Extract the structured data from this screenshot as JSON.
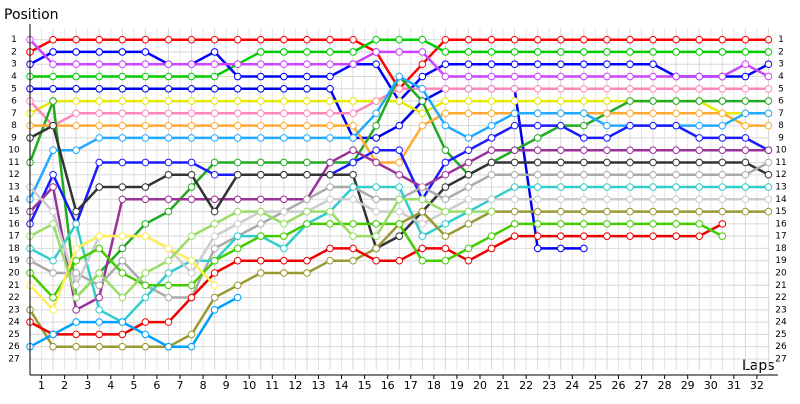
{
  "chart_data": {
    "type": "line",
    "y_label": "Position",
    "x_label": "Laps",
    "x": [
      0,
      1,
      2,
      3,
      4,
      5,
      6,
      7,
      8,
      9,
      10,
      11,
      12,
      13,
      14,
      15,
      16,
      17,
      18,
      19,
      20,
      21,
      22,
      23,
      24,
      25,
      26,
      27,
      28,
      29,
      30,
      31,
      32
    ],
    "xlim": [
      0,
      32.5
    ],
    "xticks": [
      {
        "value": 0.5,
        "label": "1"
      },
      {
        "value": 1.5,
        "label": "2"
      },
      {
        "value": 2.5,
        "label": "3"
      },
      {
        "value": 3.5,
        "label": "4"
      },
      {
        "value": 4.5,
        "label": "5"
      },
      {
        "value": 5.5,
        "label": "6"
      },
      {
        "value": 6.5,
        "label": "7"
      },
      {
        "value": 7.5,
        "label": "8"
      },
      {
        "value": 8.5,
        "label": "9"
      },
      {
        "value": 9.5,
        "label": "10"
      },
      {
        "value": 10.5,
        "label": "11"
      },
      {
        "value": 11.5,
        "label": "12"
      },
      {
        "value": 12.5,
        "label": "13"
      },
      {
        "value": 13.5,
        "label": "14"
      },
      {
        "value": 14.5,
        "label": "15"
      },
      {
        "value": 15.5,
        "label": "16"
      },
      {
        "value": 16.5,
        "label": "17"
      },
      {
        "value": 17.5,
        "label": "18"
      },
      {
        "value": 18.5,
        "label": "19"
      },
      {
        "value": 19.5,
        "label": "20"
      },
      {
        "value": 20.5,
        "label": "21"
      },
      {
        "value": 21.5,
        "label": "22"
      },
      {
        "value": 22.5,
        "label": "23"
      },
      {
        "value": 23.5,
        "label": "24"
      },
      {
        "value": 24.5,
        "label": "25"
      },
      {
        "value": 25.5,
        "label": "26"
      },
      {
        "value": 26.5,
        "label": "27"
      },
      {
        "value": 27.5,
        "label": "28"
      },
      {
        "value": 28.5,
        "label": "29"
      },
      {
        "value": 29.5,
        "label": "30"
      },
      {
        "value": 30.5,
        "label": "31"
      },
      {
        "value": 31.5,
        "label": "32"
      }
    ],
    "ylim": [
      27.9,
      0.05
    ],
    "yticks": [
      1,
      2,
      3,
      4,
      5,
      6,
      7,
      8,
      9,
      10,
      11,
      12,
      13,
      14,
      15,
      16,
      17,
      18,
      19,
      20,
      21,
      22,
      23,
      24,
      25,
      26,
      27
    ],
    "grid": true,
    "series": [
      {
        "color": "#ff0000",
        "values": [
          2,
          1,
          1,
          1,
          1,
          1,
          1,
          1,
          1,
          1,
          1,
          1,
          1,
          1,
          1,
          2,
          5,
          3,
          1,
          1,
          1,
          1,
          1,
          1,
          1,
          1,
          1,
          1,
          1,
          1,
          1,
          1,
          1
        ]
      },
      {
        "color": "#00cc00",
        "values": [
          4,
          4,
          4,
          4,
          4,
          4,
          4,
          4,
          4,
          3,
          2,
          2,
          2,
          2,
          2,
          1,
          1,
          1,
          2,
          2,
          2,
          2,
          2,
          2,
          2,
          2,
          2,
          2,
          2,
          2,
          2,
          2,
          2
        ]
      },
      {
        "color": "#0000ff",
        "values": [
          3,
          2,
          2,
          2,
          2,
          2,
          3,
          3,
          2,
          4,
          4,
          4,
          4,
          4,
          3,
          3,
          6,
          4,
          3,
          3,
          3,
          3,
          3,
          3,
          3,
          3,
          3,
          3,
          4,
          4,
          4,
          4,
          3
        ]
      },
      {
        "color": "#cc44ff",
        "values": [
          1,
          3,
          3,
          3,
          3,
          3,
          3,
          3,
          3,
          3,
          3,
          3,
          3,
          3,
          3,
          2,
          2,
          2,
          4,
          4,
          4,
          4,
          4,
          4,
          4,
          4,
          4,
          4,
          4,
          4,
          4,
          3,
          4
        ]
      },
      {
        "color": "#0000ee",
        "values": [
          5,
          5,
          5,
          5,
          5,
          5,
          5,
          5,
          5,
          5,
          5,
          5,
          5,
          5,
          9,
          9,
          8,
          6,
          5,
          5,
          5,
          5,
          18,
          18,
          18,
          null,
          null,
          null,
          null,
          null,
          null,
          null,
          null
        ]
      },
      {
        "color": "#e8e800",
        "values": [
          7,
          6,
          6,
          6,
          6,
          6,
          6,
          6,
          6,
          6,
          6,
          6,
          6,
          6,
          6,
          6,
          6,
          7,
          6,
          6,
          6,
          6,
          6,
          6,
          6,
          6,
          6,
          6,
          6,
          6,
          7,
          7,
          7
        ]
      },
      {
        "color": "#ff88bb",
        "values": [
          6,
          8,
          7,
          7,
          7,
          7,
          7,
          7,
          7,
          7,
          7,
          7,
          7,
          7,
          7,
          6,
          5,
          5,
          5,
          5,
          5,
          5,
          5,
          5,
          5,
          5,
          5,
          5,
          5,
          5,
          5,
          5,
          5
        ]
      },
      {
        "color": "#22aa22",
        "values": [
          11,
          6,
          22,
          20,
          18,
          16,
          15,
          13,
          11,
          11,
          11,
          11,
          11,
          11,
          11,
          8,
          4,
          6,
          10,
          12,
          11,
          10,
          9,
          8,
          8,
          7,
          6,
          6,
          6,
          6,
          6,
          6,
          6
        ]
      },
      {
        "color": "#ffaa33",
        "values": [
          8,
          8,
          8,
          8,
          8,
          8,
          8,
          8,
          8,
          8,
          8,
          8,
          8,
          8,
          8,
          11,
          11,
          8,
          7,
          7,
          7,
          7,
          7,
          7,
          7,
          7,
          7,
          7,
          7,
          7,
          7,
          8,
          8
        ]
      },
      {
        "color": "#22aaff",
        "values": [
          14,
          10,
          10,
          9,
          9,
          9,
          9,
          9,
          9,
          9,
          9,
          9,
          9,
          9,
          9,
          7,
          4,
          5,
          8,
          9,
          8,
          7,
          7,
          7,
          7,
          8,
          8,
          8,
          8,
          8,
          8,
          7,
          7
        ]
      },
      {
        "color": "#1a1aff",
        "values": [
          16,
          12,
          16,
          11,
          11,
          11,
          11,
          11,
          12,
          12,
          12,
          12,
          12,
          12,
          11,
          10,
          10,
          14,
          11,
          10,
          9,
          8,
          8,
          8,
          9,
          9,
          8,
          8,
          8,
          9,
          9,
          9,
          10
        ]
      },
      {
        "color": "#993399",
        "values": [
          15,
          13,
          23,
          22,
          14,
          14,
          14,
          14,
          14,
          14,
          14,
          14,
          14,
          11,
          10,
          11,
          12,
          13,
          12,
          11,
          10,
          10,
          10,
          10,
          10,
          10,
          10,
          10,
          10,
          10,
          10,
          10,
          10
        ]
      },
      {
        "color": "#333333",
        "values": [
          9,
          8,
          15,
          13,
          13,
          13,
          12,
          12,
          15,
          12,
          12,
          12,
          12,
          12,
          12,
          18,
          17,
          15,
          13,
          12,
          11,
          11,
          11,
          11,
          11,
          11,
          11,
          11,
          11,
          11,
          11,
          11,
          12
        ]
      },
      {
        "color": "#aaaaaa",
        "values": [
          19,
          20,
          20,
          21,
          19,
          21,
          22,
          22,
          18,
          17,
          16,
          15,
          14,
          13,
          13,
          14,
          14,
          13,
          14,
          13,
          12,
          12,
          12,
          12,
          12,
          12,
          12,
          12,
          12,
          12,
          12,
          12,
          11
        ]
      },
      {
        "color": "#33cccc",
        "values": [
          18,
          19,
          16,
          23,
          24,
          22,
          20,
          19,
          19,
          17,
          17,
          18,
          16,
          15,
          13,
          13,
          13,
          17,
          16,
          15,
          14,
          13,
          13,
          13,
          13,
          13,
          13,
          13,
          13,
          13,
          13,
          13,
          13
        ]
      },
      {
        "color": "#cccccc",
        "values": [
          13,
          15,
          21,
          17,
          17,
          17,
          18,
          20,
          17,
          16,
          15,
          15,
          15,
          14,
          14,
          15,
          15,
          16,
          15,
          14,
          14,
          14,
          14,
          14,
          14,
          14,
          14,
          14,
          14,
          14,
          14,
          14,
          14
        ]
      },
      {
        "color": "#999933",
        "values": [
          23,
          26,
          26,
          26,
          26,
          26,
          26,
          25,
          22,
          21,
          20,
          20,
          20,
          19,
          19,
          18,
          16,
          15,
          17,
          16,
          15,
          15,
          15,
          15,
          15,
          15,
          15,
          15,
          15,
          15,
          15,
          15,
          15
        ]
      },
      {
        "color": "#ee0000",
        "values": [
          24,
          25,
          25,
          25,
          25,
          24,
          24,
          22,
          20,
          19,
          19,
          19,
          19,
          18,
          18,
          19,
          19,
          18,
          18,
          19,
          18,
          17,
          17,
          17,
          17,
          17,
          17,
          17,
          17,
          17,
          16,
          null,
          null
        ]
      },
      {
        "color": "#44cc00",
        "values": [
          20,
          22,
          19,
          18,
          20,
          21,
          21,
          21,
          19,
          18,
          17,
          17,
          16,
          16,
          16,
          16,
          16,
          19,
          19,
          18,
          17,
          16,
          16,
          16,
          16,
          16,
          16,
          16,
          16,
          16,
          17,
          null,
          null
        ]
      },
      {
        "color": "#ffee55",
        "values": [
          21,
          23,
          18,
          17,
          17,
          17,
          18,
          19,
          21,
          null,
          null,
          null,
          null,
          null,
          null,
          null,
          null,
          null,
          null,
          null,
          null,
          null,
          null,
          null,
          null,
          null,
          null,
          null,
          null,
          null,
          null,
          null,
          null
        ]
      },
      {
        "color": "#99dd66",
        "values": [
          17,
          16,
          22,
          20,
          22,
          20,
          19,
          17,
          16,
          15,
          15,
          16,
          15,
          15,
          17,
          17,
          14,
          14,
          15,
          15,
          15,
          null,
          null,
          null,
          null,
          null,
          null,
          null,
          null,
          null,
          null,
          null,
          null
        ]
      },
      {
        "color": "#00a0ff",
        "values": [
          26,
          25,
          24,
          24,
          24,
          25,
          26,
          26,
          23,
          22,
          null,
          null,
          null,
          null,
          null,
          null,
          null,
          null,
          null,
          null,
          null,
          null,
          null,
          null,
          null,
          null,
          null,
          null,
          null,
          null,
          null,
          null,
          null
        ]
      }
    ]
  }
}
